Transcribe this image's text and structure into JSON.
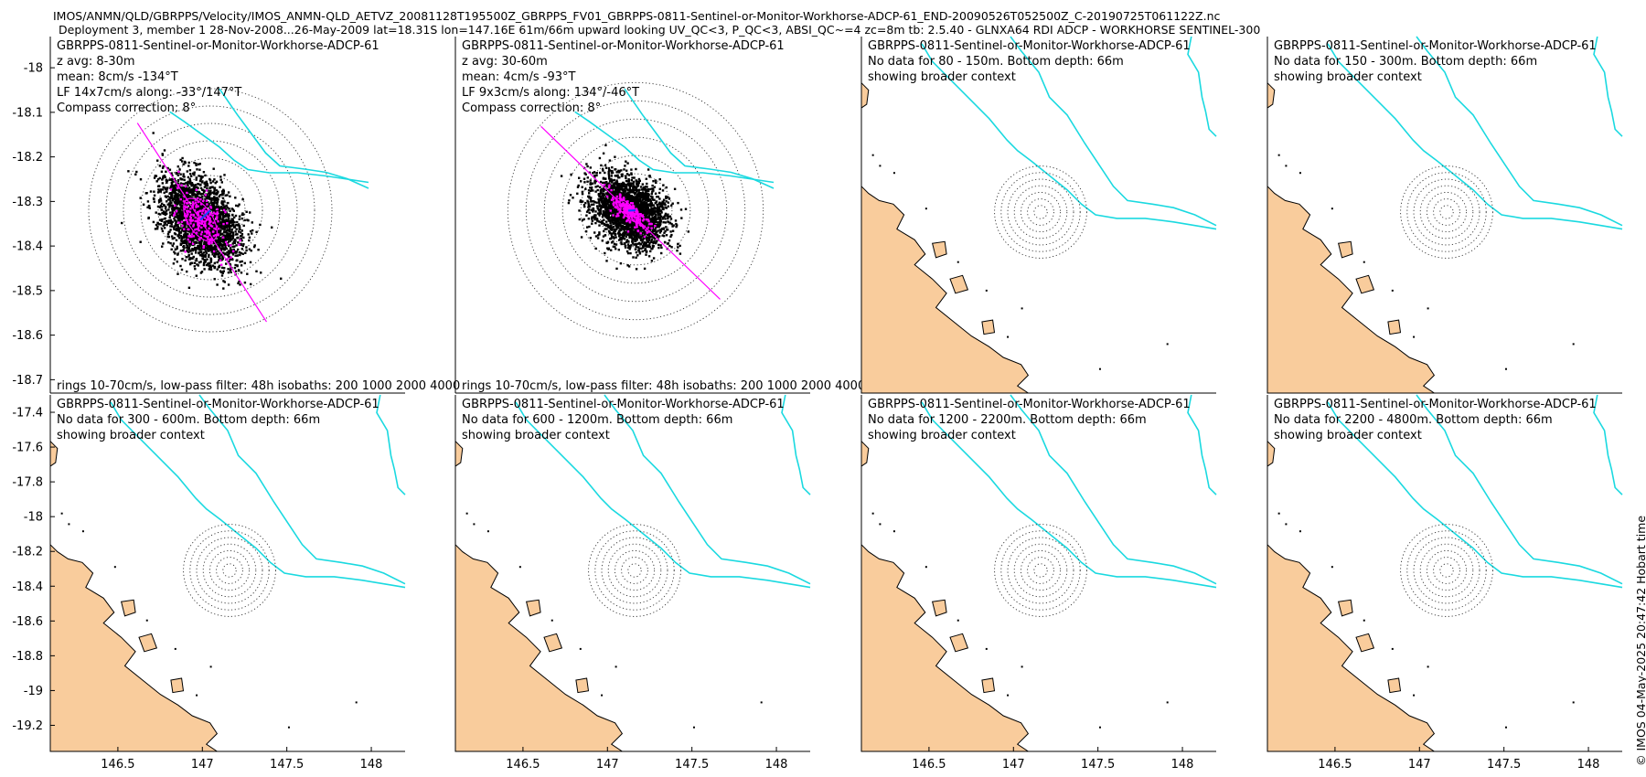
{
  "figure": {
    "title_line1": "IMOS/ANMN/QLD/GBRPPS/Velocity/IMOS_ANMN-QLD_AETVZ_20081128T195500Z_GBRPPS_FV01_GBRPPS-0811-Sentinel-or-Monitor-Workhorse-ADCP-61_END-20090526T052500Z_C-20190725T061122Z.nc",
    "title_line2": "Deployment 3, member 1 28-Nov-2008...26-May-2009 lat=18.31S lon=147.16E 61m/66m upward looking UV_QC<3, P_QC<3, ABSI_QC~=4 zc=8m tb: 2.5.40 - GLNXA64 RDI ADCP - WORKHORSE SENTINEL-300",
    "credit": "© IMOS 04-May-2025 20:47:42 Hobart time"
  },
  "colors": {
    "land": "#f9cc9c",
    "coast": "#000000",
    "isobath": "#1ad9e0",
    "scatter": "#000000",
    "lowpass": "#ff00ff",
    "mean_vector": "#1f3fff"
  },
  "chart_data": [
    {
      "type": "scatter",
      "panel": "z-avg-8-30m",
      "title": "GBRPPS-0811-Sentinel-or-Monitor-Workhorse-ADCP-61",
      "info": [
        "z avg: 8-30m",
        "mean: 8cm/s -134°T",
        "LF 14x7cm/s along: -33°/147°T",
        "Compass correction: 8°"
      ],
      "footer": "rings 10-70cm/s, low-pass filter: 48h isobaths: 200 1000 2000 4000",
      "rings_cm_s": [
        10,
        20,
        30,
        40,
        50,
        60,
        70
      ],
      "mean_speed_cm_s": 8,
      "mean_dir_degT": -134,
      "lowpass_axes_cm_s": [
        14,
        7
      ],
      "lowpass_along_degT": [
        -33,
        147
      ],
      "spread_cm_s": [
        26,
        16
      ],
      "spread_angle_deg": -33,
      "ylim": [
        -18.73,
        -17.93
      ],
      "yticks": [
        -18,
        -18.1,
        -18.2,
        -18.3,
        -18.4,
        -18.5,
        -18.6,
        -18.7
      ],
      "xticks": []
    },
    {
      "type": "scatter",
      "panel": "z-avg-30-60m",
      "title": "GBRPPS-0811-Sentinel-or-Monitor-Workhorse-ADCP-61",
      "info": [
        "z avg: 30-60m",
        "mean: 4cm/s -93°T",
        "LF 9x3cm/s along: 134°/-46°T",
        "Compass correction: 8°"
      ],
      "footer": "rings 10-70cm/s, low-pass filter: 48h isobaths: 200 1000 2000 4000",
      "rings_cm_s": [
        10,
        20,
        30,
        40,
        50,
        60,
        70
      ],
      "mean_speed_cm_s": 4,
      "mean_dir_degT": -93,
      "lowpass_axes_cm_s": [
        9,
        3
      ],
      "lowpass_along_degT": [
        134,
        -46
      ],
      "spread_cm_s": [
        20,
        14
      ],
      "spread_angle_deg": -46,
      "ylim": [
        -18.73,
        -17.93
      ],
      "yticks": [],
      "xticks": []
    },
    {
      "type": "map",
      "panel": "80-150m",
      "title": "GBRPPS-0811-Sentinel-or-Monitor-Workhorse-ADCP-61",
      "info": [
        "No data for 80 - 150m. Bottom depth: 66m",
        "showing broader context"
      ],
      "yticks": [],
      "xticks": []
    },
    {
      "type": "map",
      "panel": "150-300m",
      "title": "GBRPPS-0811-Sentinel-or-Monitor-Workhorse-ADCP-61",
      "info": [
        "No data for 150 - 300m. Bottom depth: 66m",
        "showing broader context"
      ],
      "yticks": [],
      "xticks": []
    },
    {
      "type": "map",
      "panel": "300-600m",
      "title": "GBRPPS-0811-Sentinel-or-Monitor-Workhorse-ADCP-61",
      "info": [
        "No data for 300 - 600m. Bottom depth: 66m",
        "showing broader context"
      ],
      "ylim": [
        -19.35,
        -17.3
      ],
      "yticks": [
        -17.4,
        -17.6,
        -17.8,
        -18,
        -18.2,
        -18.4,
        -18.6,
        -18.8,
        -19,
        -19.2
      ],
      "xlim": [
        146.1,
        148.2
      ],
      "xticks": [
        146.5,
        147,
        147.5,
        148
      ]
    },
    {
      "type": "map",
      "panel": "600-1200m",
      "title": "GBRPPS-0811-Sentinel-or-Monitor-Workhorse-ADCP-61",
      "info": [
        "No data for 600 - 1200m. Bottom depth: 66m",
        "showing broader context"
      ],
      "yticks": [],
      "xlim": [
        146.1,
        148.2
      ],
      "xticks": [
        146.5,
        147,
        147.5,
        148
      ]
    },
    {
      "type": "map",
      "panel": "1200-2200m",
      "title": "GBRPPS-0811-Sentinel-or-Monitor-Workhorse-ADCP-61",
      "info": [
        "No data for 1200 - 2200m. Bottom depth: 66m",
        "showing broader context"
      ],
      "yticks": [],
      "xlim": [
        146.1,
        148.2
      ],
      "xticks": [
        146.5,
        147,
        147.5,
        148
      ]
    },
    {
      "type": "map",
      "panel": "2200-4800m",
      "title": "GBRPPS-0811-Sentinel-or-Monitor-Workhorse-ADCP-61",
      "info": [
        "No data for 2200 - 4800m. Bottom depth: 66m",
        "showing broader context"
      ],
      "yticks": [],
      "xlim": [
        146.1,
        148.2
      ],
      "xticks": [
        146.5,
        147,
        147.5,
        148
      ]
    }
  ]
}
